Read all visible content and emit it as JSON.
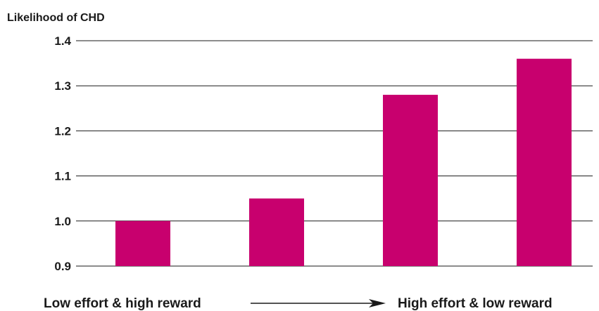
{
  "chart_data": {
    "type": "bar",
    "title": "",
    "ylabel": "Likelihood of CHD",
    "xlabel": "",
    "categories": [
      "",
      "",
      "",
      ""
    ],
    "values": [
      1.0,
      1.05,
      1.28,
      1.36
    ],
    "ylim": [
      0.9,
      1.4
    ],
    "yticks": [
      "0.9",
      "1.0",
      "1.1",
      "1.2",
      "1.3",
      "1.4"
    ],
    "grid": true,
    "bar_color": "#c8006e",
    "axis_left_label": "Low effort & high reward",
    "axis_right_label": "High effort & low reward",
    "arrow_icon": "right-arrow-icon"
  }
}
